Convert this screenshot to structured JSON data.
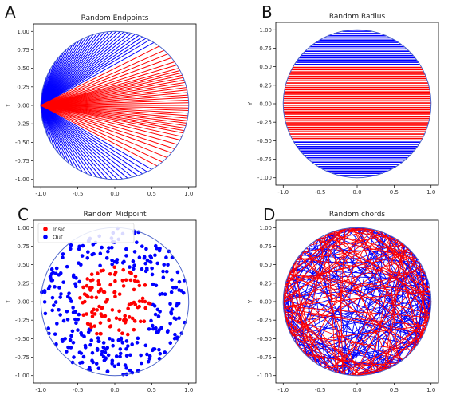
{
  "colors": {
    "inside": "#ff0000",
    "outside": "#0000ff",
    "circle": "#4b63c9",
    "axes": "#000000"
  },
  "chart_data": [
    {
      "panel": "A",
      "type": "line",
      "title": "Random Endpoints",
      "ylabel": "Y",
      "xlim": [
        -1.1,
        1.1
      ],
      "ylim": [
        -1.1,
        1.1
      ],
      "xticks": [
        "-1.0",
        "-0.5",
        "0.0",
        "0.5",
        "1.0"
      ],
      "yticks": [
        "1.00",
        "0.75",
        "0.50",
        "0.25",
        "0.00",
        "-0.25",
        "-0.50",
        "-0.75",
        "-1.00"
      ],
      "chord_anchor": [
        -1.0,
        0.0
      ],
      "endpoint_angles_deg_inside": [
        -32,
        -28,
        -25,
        -22,
        -20,
        -18,
        -16,
        -14,
        -12,
        -10,
        -8,
        -6,
        -4,
        -2,
        0,
        2,
        4,
        6,
        8,
        10,
        12,
        14,
        16,
        18,
        20,
        22,
        24,
        26,
        28,
        30,
        33,
        36,
        40,
        44,
        48,
        53,
        -36,
        -40,
        -45,
        -50,
        -55
      ],
      "endpoint_angles_deg_outside": [
        58,
        62,
        65,
        68,
        71,
        74,
        77,
        80,
        83,
        86,
        89,
        92,
        95,
        98,
        101,
        104,
        107,
        110,
        113,
        116,
        119,
        122,
        125,
        128,
        131,
        134,
        137,
        140,
        143,
        146,
        150,
        154,
        158,
        162,
        166,
        170,
        174,
        -60,
        -64,
        -68,
        -72,
        -76,
        -80,
        -84,
        -88,
        -92,
        -96,
        -100,
        -104,
        -108,
        -112,
        -116,
        -120,
        -124,
        -128,
        -132,
        -136,
        -140,
        -145,
        -150,
        -155,
        -160,
        -165,
        -170,
        -175
      ]
    },
    {
      "panel": "B",
      "type": "line",
      "title": "Random Radius",
      "ylabel": "Y",
      "xlim": [
        -1.1,
        1.1
      ],
      "ylim": [
        -1.1,
        1.1
      ],
      "xticks": [
        "-1.0",
        "-0.5",
        "0.0",
        "0.5",
        "1.0"
      ],
      "yticks": [
        "1.00",
        "0.75",
        "0.50",
        "0.25",
        "0.00",
        "-0.25",
        "-0.50",
        "-0.75",
        "-1.00"
      ],
      "horizontal_chords_y_inside": [
        0.49,
        0.46,
        0.43,
        0.4,
        0.37,
        0.34,
        0.31,
        0.28,
        0.25,
        0.22,
        0.19,
        0.16,
        0.13,
        0.1,
        0.07,
        0.04,
        0.01,
        -0.02,
        -0.05,
        -0.08,
        -0.11,
        -0.14,
        -0.17,
        -0.2,
        -0.23,
        -0.26,
        -0.29,
        -0.32,
        -0.35,
        -0.38,
        -0.41,
        -0.44,
        -0.47
      ],
      "horizontal_chords_y_outside": [
        0.98,
        0.95,
        0.92,
        0.89,
        0.86,
        0.83,
        0.8,
        0.77,
        0.74,
        0.71,
        0.68,
        0.65,
        0.62,
        0.59,
        0.56,
        0.53,
        -0.52,
        -0.55,
        -0.58,
        -0.61,
        -0.64,
        -0.67,
        -0.7,
        -0.73,
        -0.76,
        -0.79,
        -0.82,
        -0.85,
        -0.88,
        -0.91,
        -0.94,
        -0.97
      ]
    },
    {
      "panel": "C",
      "type": "scatter",
      "title": "Random Midpoint",
      "ylabel": "Y",
      "xlim": [
        -1.1,
        1.1
      ],
      "ylim": [
        -1.1,
        1.1
      ],
      "xticks": [
        "-1.0",
        "-0.5",
        "0.0",
        "0.5",
        "1.0"
      ],
      "yticks": [
        "1.00",
        "0.75",
        "0.50",
        "0.25",
        "0.00",
        "-0.25",
        "-0.50",
        "-0.75",
        "-1.00"
      ],
      "legend": {
        "position": "top-left",
        "entries": [
          "Insid",
          "Out"
        ]
      },
      "inside_count": 110,
      "outside_count": 290,
      "inside_radius": 0.5
    },
    {
      "panel": "D",
      "type": "line",
      "title": "Random chords",
      "ylabel": "Y",
      "xlim": [
        -1.1,
        1.1
      ],
      "ylim": [
        -1.1,
        1.1
      ],
      "xticks": [
        "-1.0",
        "-0.5",
        "0.0",
        "0.5",
        "1.0"
      ],
      "yticks": [
        "1.00",
        "0.75",
        "0.50",
        "0.25",
        "0.00",
        "-0.25",
        "-0.50",
        "-0.75",
        "-1.00"
      ],
      "chord_count_inside": 130,
      "chord_count_outside": 170
    }
  ],
  "panel_letters": [
    "A",
    "B",
    "C",
    "D"
  ]
}
